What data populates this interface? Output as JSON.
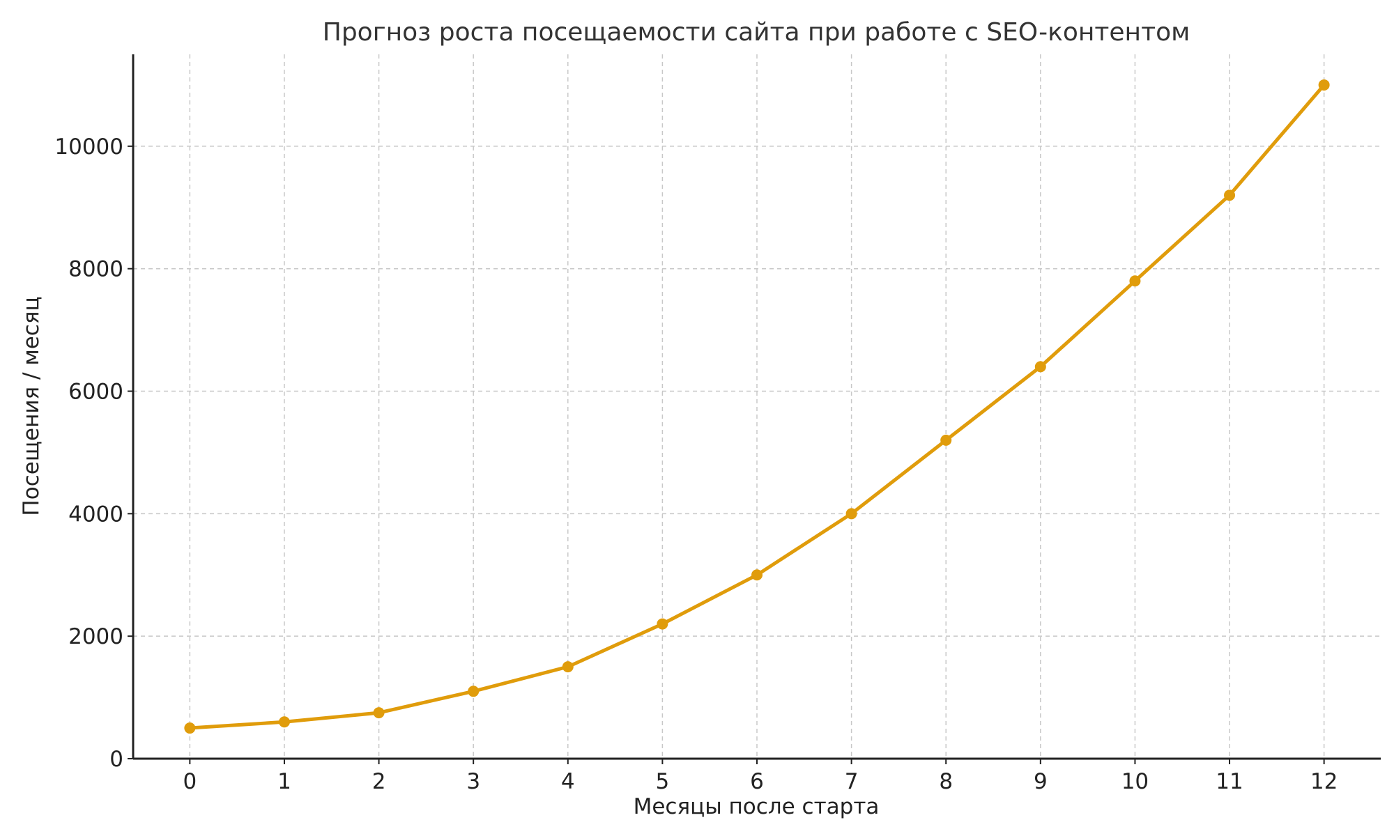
{
  "chart_data": {
    "type": "line",
    "title": "Прогноз роста посещаемости сайта при работе с SEO-контентом",
    "xlabel": "Месяцы после старта",
    "ylabel": "Посещения / месяц",
    "x": [
      0,
      1,
      2,
      3,
      4,
      5,
      6,
      7,
      8,
      9,
      10,
      11,
      12
    ],
    "series": [
      {
        "values": [
          500,
          600,
          750,
          1100,
          1500,
          2200,
          3000,
          4000,
          5200,
          6400,
          7800,
          9200,
          11000
        ]
      }
    ],
    "xlim": [
      -0.6,
      12.6
    ],
    "ylim": [
      0,
      11500
    ],
    "xticks": [
      "0",
      "1",
      "2",
      "3",
      "4",
      "5",
      "6",
      "7",
      "8",
      "9",
      "10",
      "11",
      "12"
    ],
    "yticks": [
      "0",
      "2000",
      "4000",
      "6000",
      "8000",
      "10000"
    ],
    "grid": true,
    "color": "#e09c0b"
  }
}
